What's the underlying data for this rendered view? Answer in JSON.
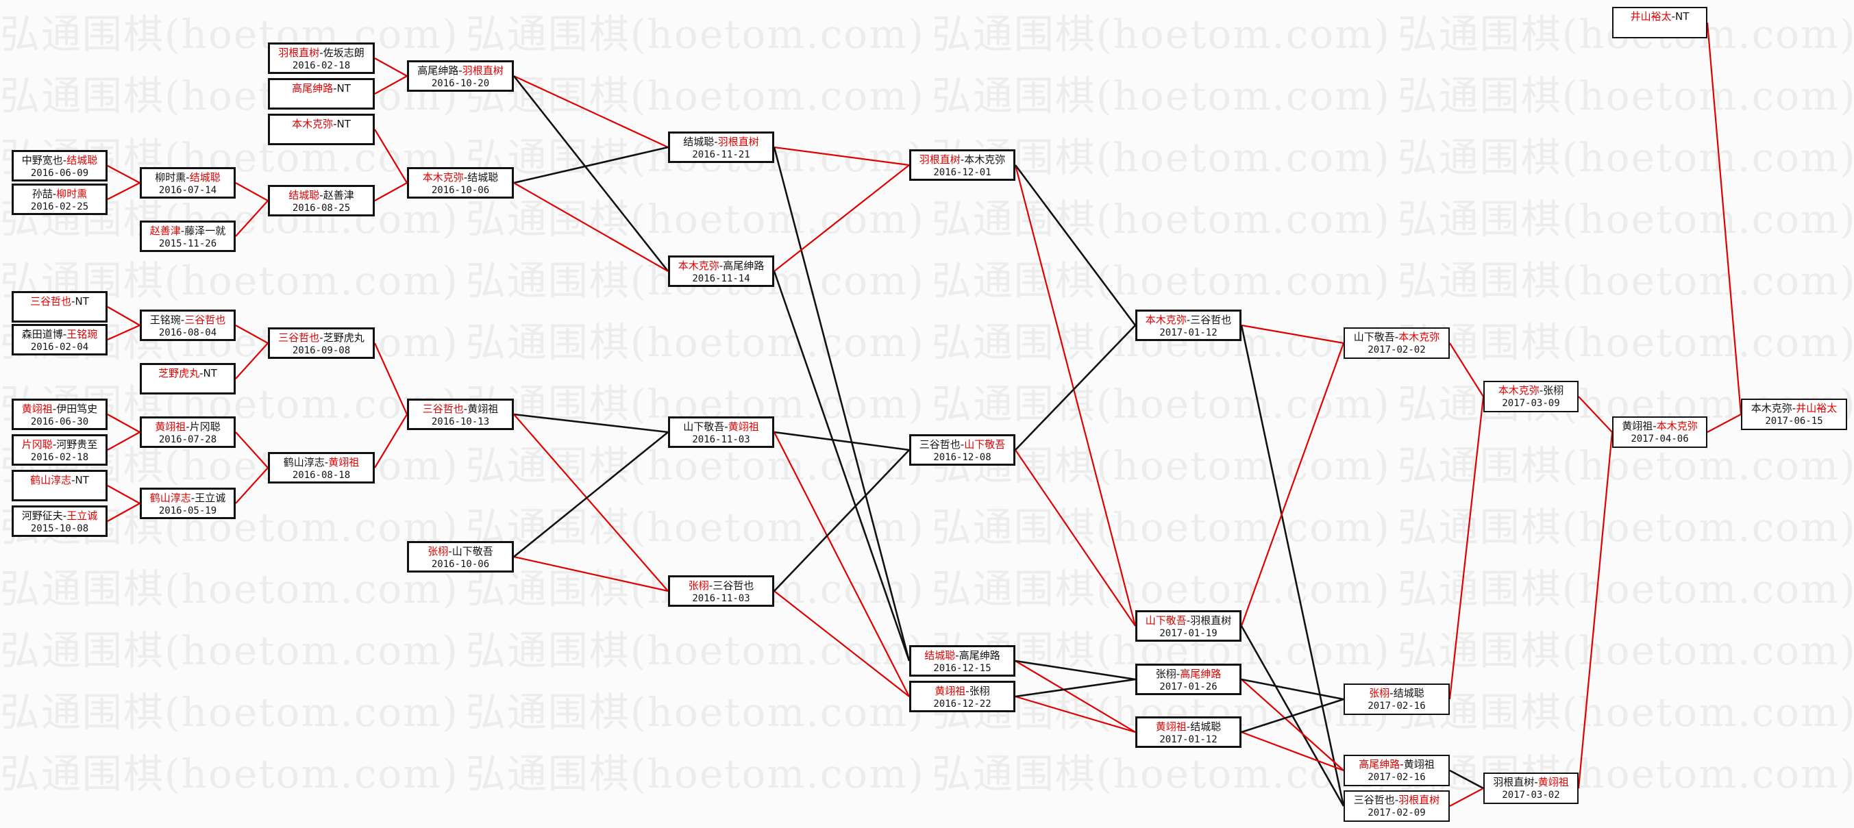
{
  "watermark": "弘通围棋(hoetom.com)",
  "colors": {
    "winner": "#e00000",
    "loser_line": "#111111",
    "winner_line": "#e00000"
  },
  "matches": [
    {
      "id": "A1",
      "p1": "中野宽也",
      "p2": "结城聪",
      "winner": 2,
      "date": "2016-06-09"
    },
    {
      "id": "A2",
      "p1": "孙喆",
      "p2": "柳时熏",
      "winner": 2,
      "date": "2016-02-25"
    },
    {
      "id": "A3",
      "p1": "三谷哲也",
      "p2": "NT",
      "winner": 1,
      "date": ""
    },
    {
      "id": "A4",
      "p1": "森田道博",
      "p2": "王铭琬",
      "winner": 2,
      "date": "2016-02-04"
    },
    {
      "id": "A5",
      "p1": "黄翊祖",
      "p2": "伊田笃史",
      "winner": 1,
      "date": "2016-06-30"
    },
    {
      "id": "A6",
      "p1": "片冈聪",
      "p2": "河野贵至",
      "winner": 1,
      "date": "2016-02-18"
    },
    {
      "id": "A7",
      "p1": "鹤山淳志",
      "p2": "NT",
      "winner": 1,
      "date": ""
    },
    {
      "id": "A8",
      "p1": "河野征夫",
      "p2": "王立诚",
      "winner": 2,
      "date": "2015-10-08"
    },
    {
      "id": "B1",
      "p1": "柳时熏",
      "p2": "结城聪",
      "winner": 2,
      "date": "2016-07-14"
    },
    {
      "id": "B2",
      "p1": "赵善津",
      "p2": "藤泽一就",
      "winner": 1,
      "date": "2015-11-26"
    },
    {
      "id": "B3",
      "p1": "王铭琬",
      "p2": "三谷哲也",
      "winner": 2,
      "date": "2016-08-04"
    },
    {
      "id": "B4",
      "p1": "芝野虎丸",
      "p2": "NT",
      "winner": 1,
      "date": ""
    },
    {
      "id": "B5",
      "p1": "黄翊祖",
      "p2": "片冈聪",
      "winner": 1,
      "date": "2016-07-28"
    },
    {
      "id": "B6",
      "p1": "鹤山淳志",
      "p2": "王立诚",
      "winner": 1,
      "date": "2016-05-19"
    },
    {
      "id": "C1",
      "p1": "羽根直树",
      "p2": "佐坂志朗",
      "winner": 1,
      "date": "2016-02-18"
    },
    {
      "id": "C2",
      "p1": "高尾绅路",
      "p2": "NT",
      "winner": 1,
      "date": ""
    },
    {
      "id": "C3",
      "p1": "本木克弥",
      "p2": "NT",
      "winner": 1,
      "date": ""
    },
    {
      "id": "C4",
      "p1": "结城聪",
      "p2": "赵善津",
      "winner": 1,
      "date": "2016-08-25"
    },
    {
      "id": "C5",
      "p1": "三谷哲也",
      "p2": "芝野虎丸",
      "winner": 1,
      "date": "2016-09-08"
    },
    {
      "id": "C6",
      "p1": "鹤山淳志",
      "p2": "黄翊祖",
      "winner": 2,
      "date": "2016-08-18"
    },
    {
      "id": "D1",
      "p1": "高尾绅路",
      "p2": "羽根直树",
      "winner": 2,
      "date": "2016-10-20"
    },
    {
      "id": "D2",
      "p1": "本木克弥",
      "p2": "结城聪",
      "winner": 1,
      "date": "2016-10-06"
    },
    {
      "id": "D3",
      "p1": "三谷哲也",
      "p2": "黄翊祖",
      "winner": 1,
      "date": "2016-10-13"
    },
    {
      "id": "D4",
      "p1": "张栩",
      "p2": "山下敬吾",
      "winner": 1,
      "date": "2016-10-06"
    },
    {
      "id": "E1",
      "p1": "结城聪",
      "p2": "羽根直树",
      "winner": 2,
      "date": "2016-11-21"
    },
    {
      "id": "E2",
      "p1": "本木克弥",
      "p2": "高尾绅路",
      "winner": 1,
      "date": "2016-11-14"
    },
    {
      "id": "E3",
      "p1": "山下敬吾",
      "p2": "黄翊祖",
      "winner": 2,
      "date": "2016-11-03"
    },
    {
      "id": "E4",
      "p1": "张栩",
      "p2": "三谷哲也",
      "winner": 1,
      "date": "2016-11-03"
    },
    {
      "id": "F1",
      "p1": "羽根直树",
      "p2": "本木克弥",
      "winner": 1,
      "date": "2016-12-01"
    },
    {
      "id": "F2",
      "p1": "三谷哲也",
      "p2": "山下敬吾",
      "winner": 2,
      "date": "2016-12-08"
    },
    {
      "id": "F3",
      "p1": "结城聪",
      "p2": "高尾绅路",
      "winner": 1,
      "date": "2016-12-15"
    },
    {
      "id": "F4",
      "p1": "黄翊祖",
      "p2": "张栩",
      "winner": 1,
      "date": "2016-12-22"
    },
    {
      "id": "G1",
      "p1": "本木克弥",
      "p2": "三谷哲也",
      "winner": 1,
      "date": "2017-01-12"
    },
    {
      "id": "G2",
      "p1": "山下敬吾",
      "p2": "羽根直树",
      "winner": 1,
      "date": "2017-01-19"
    },
    {
      "id": "G3",
      "p1": "张栩",
      "p2": "高尾绅路",
      "winner": 2,
      "date": "2017-01-26"
    },
    {
      "id": "G4",
      "p1": "黄翊祖",
      "p2": "结城聪",
      "winner": 1,
      "date": "2017-01-12"
    },
    {
      "id": "H1",
      "p1": "山下敬吾",
      "p2": "本木克弥",
      "winner": 2,
      "date": "2017-02-02"
    },
    {
      "id": "H2",
      "p1": "张栩",
      "p2": "结城聪",
      "winner": 1,
      "date": "2017-02-16"
    },
    {
      "id": "H3",
      "p1": "高尾绅路",
      "p2": "黄翊祖",
      "winner": 1,
      "date": "2017-02-16"
    },
    {
      "id": "H4",
      "p1": "三谷哲也",
      "p2": "羽根直树",
      "winner": 2,
      "date": "2017-02-09"
    },
    {
      "id": "I1",
      "p1": "本木克弥",
      "p2": "张栩",
      "winner": 1,
      "date": "2017-03-09"
    },
    {
      "id": "I2",
      "p1": "羽根直树",
      "p2": "黄翊祖",
      "winner": 2,
      "date": "2017-03-02"
    },
    {
      "id": "J1",
      "p1": "黄翊祖",
      "p2": "本木克弥",
      "winner": 2,
      "date": "2017-04-06"
    },
    {
      "id": "T1",
      "p1": "井山裕太",
      "p2": "NT",
      "winner": 1,
      "date": ""
    },
    {
      "id": "K1",
      "p1": "本木克弥",
      "p2": "井山裕太",
      "winner": 2,
      "date": "2017-06-15"
    }
  ]
}
